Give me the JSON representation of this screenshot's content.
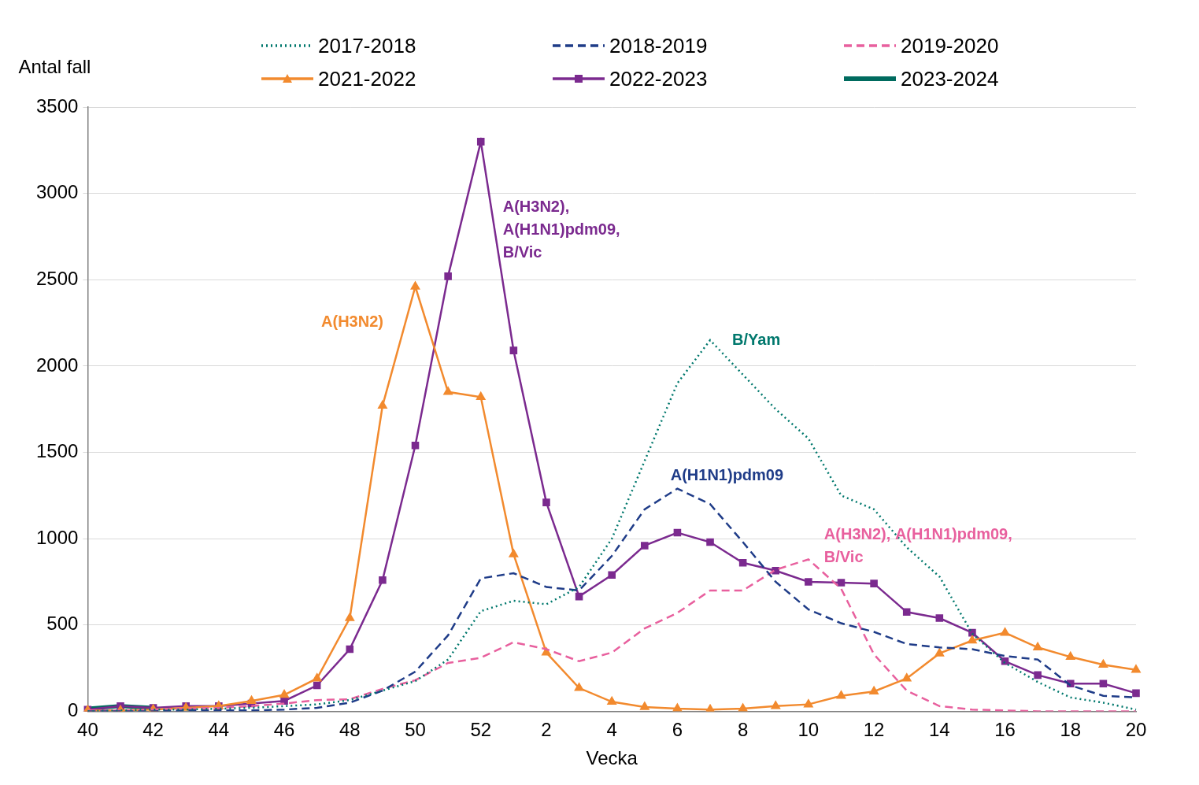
{
  "chart_data": {
    "type": "line",
    "xlabel": "Vecka",
    "ylabel": "Antal fall",
    "categories": [
      40,
      null,
      42,
      null,
      44,
      null,
      46,
      null,
      48,
      null,
      50,
      null,
      52,
      null,
      2,
      null,
      4,
      null,
      6,
      null,
      8,
      null,
      10,
      null,
      12,
      null,
      14,
      null,
      16,
      null,
      18,
      null,
      20
    ],
    "ylim": [
      0,
      3500
    ],
    "yticks": [
      0,
      500,
      1000,
      1500,
      2000,
      2500,
      3000,
      3500
    ],
    "grid": "y",
    "legend": "top",
    "series": [
      {
        "name": "2017-2018",
        "color": "#00786d",
        "line_style": "dotted",
        "marker": "none",
        "values": [
          0,
          5,
          10,
          10,
          15,
          20,
          30,
          40,
          65,
          120,
          175,
          300,
          580,
          640,
          620,
          720,
          1000,
          1450,
          1900,
          2150,
          1950,
          1750,
          1580,
          1250,
          1170,
          950,
          780,
          450,
          280,
          170,
          80,
          50,
          10
        ]
      },
      {
        "name": "2018-2019",
        "color": "#1f3c88",
        "line_style": "dashed",
        "marker": "none",
        "values": [
          0,
          0,
          0,
          5,
          5,
          5,
          10,
          20,
          50,
          120,
          230,
          440,
          770,
          800,
          720,
          700,
          900,
          1170,
          1290,
          1200,
          980,
          750,
          590,
          510,
          460,
          390,
          370,
          360,
          320,
          300,
          150,
          90,
          80
        ]
      },
      {
        "name": "2019-2020",
        "color": "#e8609e",
        "line_style": "dashed",
        "marker": "none",
        "values": [
          5,
          5,
          10,
          15,
          20,
          30,
          45,
          65,
          70,
          130,
          180,
          280,
          310,
          400,
          360,
          290,
          340,
          480,
          570,
          700,
          700,
          820,
          880,
          710,
          330,
          120,
          30,
          10,
          5,
          0,
          0,
          0,
          0
        ]
      },
      {
        "name": "2021-2022",
        "color": "#f28a2e",
        "line_style": "solid",
        "marker": "triangle",
        "values": [
          5,
          5,
          10,
          20,
          30,
          60,
          95,
          190,
          540,
          1770,
          2460,
          1850,
          1820,
          910,
          340,
          135,
          55,
          25,
          15,
          10,
          15,
          30,
          40,
          90,
          115,
          190,
          335,
          410,
          455,
          370,
          315,
          270,
          240
        ]
      },
      {
        "name": "2022-2023",
        "color": "#7b2a8f",
        "line_style": "solid",
        "marker": "square",
        "values": [
          10,
          30,
          20,
          30,
          30,
          45,
          60,
          150,
          360,
          760,
          1540,
          2520,
          3300,
          2090,
          1210,
          665,
          790,
          960,
          1035,
          980,
          860,
          815,
          750,
          745,
          740,
          575,
          540,
          455,
          290,
          210,
          160,
          160,
          105
        ]
      },
      {
        "name": "2023-2024",
        "color": "#006b5f",
        "line_style": "solid",
        "marker": "none",
        "values": [
          15,
          30,
          20,
          null,
          null,
          null,
          null,
          null,
          null,
          null,
          null,
          null,
          null,
          null,
          null,
          null,
          null,
          null,
          null,
          null,
          null,
          null,
          null,
          null,
          null,
          null,
          null,
          null,
          null,
          null,
          null,
          null,
          null
        ]
      }
    ],
    "annotations": [
      {
        "series": "2021-2022",
        "text": [
          "A(H3N2)"
        ]
      },
      {
        "series": "2022-2023",
        "text": [
          "A(H3N2),",
          "A(H1N1)pdm09,",
          "B/Vic"
        ]
      },
      {
        "series": "2017-2018",
        "text": [
          "B/Yam"
        ]
      },
      {
        "series": "2018-2019",
        "text": [
          "A(H1N1)pdm09"
        ]
      },
      {
        "series": "2019-2020",
        "text": [
          "A(H3N2), A(H1N1)pdm09,",
          "B/Vic"
        ]
      }
    ]
  }
}
